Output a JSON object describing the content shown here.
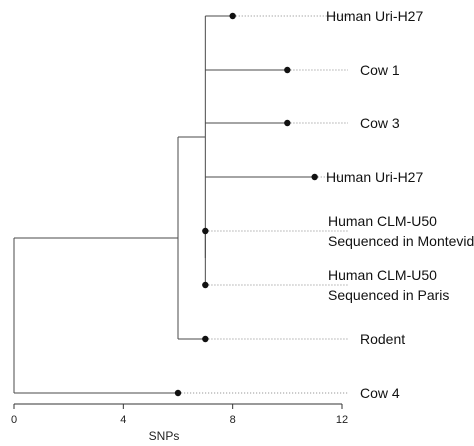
{
  "tree": {
    "axis": {
      "label": "SNPs",
      "min": 0,
      "max": 12,
      "ticks": [
        0,
        4,
        8,
        12
      ]
    },
    "leaves": [
      {
        "id": "leaf-1",
        "label_lines": [
          "Human Uri-H27"
        ],
        "snps": 8
      },
      {
        "id": "leaf-2",
        "label_lines": [
          "Cow 1"
        ],
        "snps": 10
      },
      {
        "id": "leaf-3",
        "label_lines": [
          "Cow 3"
        ],
        "snps": 10
      },
      {
        "id": "leaf-4",
        "label_lines": [
          "Human Uri-H27"
        ],
        "snps": 11
      },
      {
        "id": "leaf-5",
        "label_lines": [
          "Human CLM-U50",
          "Sequenced in Montevideo"
        ],
        "snps": 7
      },
      {
        "id": "leaf-6",
        "label_lines": [
          "Human CLM-U50",
          "Sequenced in Paris"
        ],
        "snps": 7
      },
      {
        "id": "leaf-7",
        "label_lines": [
          "Rodent"
        ],
        "snps": 7
      },
      {
        "id": "leaf-8",
        "label_lines": [
          "Cow 4"
        ],
        "snps": 6
      }
    ],
    "internal_nodes": [
      {
        "id": "node-a",
        "snps": 7,
        "children": [
          "leaf-1",
          "leaf-2",
          "leaf-3",
          "leaf-4",
          "node-b"
        ]
      },
      {
        "id": "node-b",
        "snps": 7,
        "children": [
          "leaf-5",
          "leaf-6"
        ]
      },
      {
        "id": "node-c",
        "snps": 6,
        "children": [
          "node-a",
          "leaf-7"
        ]
      },
      {
        "id": "root",
        "snps": 0,
        "children": [
          "node-c",
          "leaf-8"
        ]
      }
    ]
  }
}
